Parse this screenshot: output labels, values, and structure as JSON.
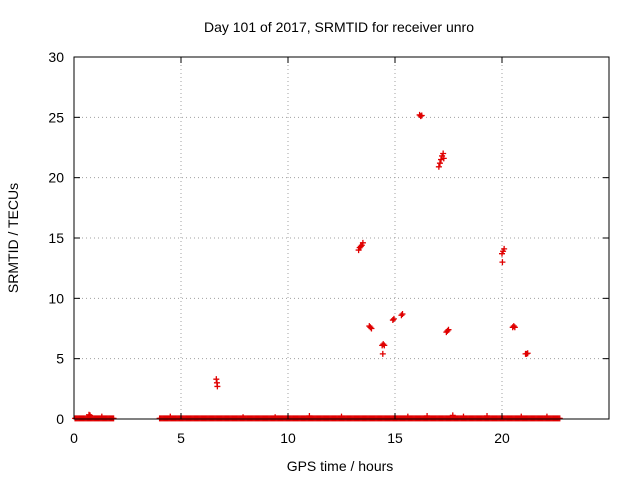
{
  "chart_data": {
    "type": "scatter",
    "title": "Day 101 of 2017, SRMTID for receiver unro",
    "xlabel": "GPS time / hours",
    "ylabel": "SRMTID / TECUs",
    "xlim": [
      0,
      25
    ],
    "ylim": [
      0,
      30
    ],
    "xticks": [
      0,
      5,
      10,
      15,
      20
    ],
    "yticks": [
      0,
      5,
      10,
      15,
      20,
      25,
      30
    ],
    "grid": true,
    "marker": "plus",
    "color": "#e00000",
    "baseline_segments": [
      [
        0.05,
        1.85
      ],
      [
        4.0,
        22.7
      ]
    ],
    "baseline_y": 0.05,
    "points": [
      [
        0.7,
        0.35
      ],
      [
        0.75,
        0.3
      ],
      [
        1.3,
        0.2
      ],
      [
        4.5,
        0.2
      ],
      [
        7.9,
        0.15
      ],
      [
        9.4,
        0.15
      ],
      [
        11.0,
        0.25
      ],
      [
        12.5,
        0.2
      ],
      [
        15.6,
        0.2
      ],
      [
        16.5,
        0.25
      ],
      [
        17.7,
        0.3
      ],
      [
        18.2,
        0.2
      ],
      [
        19.3,
        0.25
      ],
      [
        20.9,
        0.2
      ],
      [
        22.1,
        0.2
      ],
      [
        6.65,
        3.3
      ],
      [
        6.68,
        3.0
      ],
      [
        6.7,
        2.7
      ],
      [
        13.3,
        14.0
      ],
      [
        13.35,
        14.2
      ],
      [
        13.4,
        14.3
      ],
      [
        13.45,
        14.4
      ],
      [
        13.5,
        14.6
      ],
      [
        13.8,
        7.7
      ],
      [
        13.85,
        7.6
      ],
      [
        13.9,
        7.5
      ],
      [
        14.4,
        6.1
      ],
      [
        14.45,
        6.2
      ],
      [
        14.5,
        6.1
      ],
      [
        14.43,
        5.4
      ],
      [
        14.9,
        8.2
      ],
      [
        14.95,
        8.3
      ],
      [
        15.3,
        8.6
      ],
      [
        15.35,
        8.7
      ],
      [
        16.15,
        25.2
      ],
      [
        16.2,
        25.1
      ],
      [
        16.25,
        25.15
      ],
      [
        17.05,
        20.9
      ],
      [
        17.1,
        21.2
      ],
      [
        17.15,
        21.5
      ],
      [
        17.2,
        21.8
      ],
      [
        17.25,
        22.0
      ],
      [
        17.28,
        21.6
      ],
      [
        17.4,
        7.2
      ],
      [
        17.45,
        7.3
      ],
      [
        17.5,
        7.4
      ],
      [
        20.0,
        13.7
      ],
      [
        20.05,
        13.9
      ],
      [
        20.1,
        14.1
      ],
      [
        20.02,
        13.0
      ],
      [
        20.5,
        7.6
      ],
      [
        20.55,
        7.7
      ],
      [
        20.6,
        7.6
      ],
      [
        21.1,
        5.4
      ],
      [
        21.15,
        5.4
      ],
      [
        21.2,
        5.45
      ]
    ]
  }
}
